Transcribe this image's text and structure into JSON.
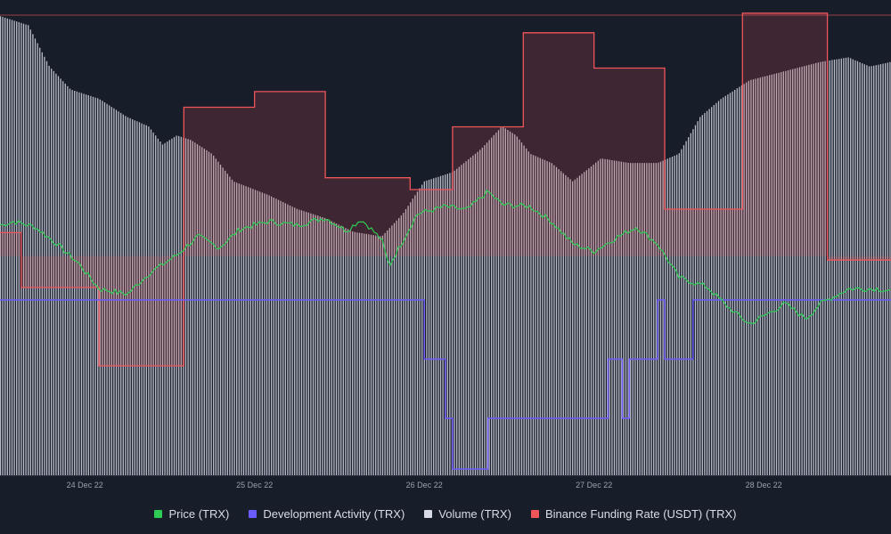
{
  "chart_data": {
    "type": "line",
    "title": "",
    "x_ticks": [
      "24 Dec 22",
      "25 Dec 22",
      "26 Dec 22",
      "27 Dec 22",
      "28 Dec 22"
    ],
    "x_range": [
      "2022-12-23T12:00",
      "2022-12-28T18:00"
    ],
    "grid": false,
    "legend_position": "bottom",
    "series": [
      {
        "name": "Price (TRX)",
        "color": "#2ecc55",
        "style": "line",
        "points": [
          [
            "2022-12-23T12:00",
            0.7
          ],
          [
            "2022-12-23T14:00",
            0.72
          ],
          [
            "2022-12-23T17:00",
            0.69
          ],
          [
            "2022-12-23T20:00",
            0.6
          ],
          [
            "2022-12-23T23:00",
            0.5
          ],
          [
            "2022-12-24T02:00",
            0.36
          ],
          [
            "2022-12-24T06:00",
            0.33
          ],
          [
            "2022-12-24T09:00",
            0.44
          ],
          [
            "2022-12-24T13:00",
            0.54
          ],
          [
            "2022-12-24T16:00",
            0.64
          ],
          [
            "2022-12-24T19:00",
            0.58
          ],
          [
            "2022-12-24T22:00",
            0.68
          ],
          [
            "2022-12-25T02:00",
            0.72
          ],
          [
            "2022-12-25T06:00",
            0.7
          ],
          [
            "2022-12-25T10:00",
            0.74
          ],
          [
            "2022-12-25T13:00",
            0.67
          ],
          [
            "2022-12-25T15:00",
            0.73
          ],
          [
            "2022-12-25T16:00",
            0.7
          ],
          [
            "2022-12-25T18:00",
            0.62
          ],
          [
            "2022-12-25T19:00",
            0.48
          ],
          [
            "2022-12-25T21:00",
            0.62
          ],
          [
            "2022-12-25T23:00",
            0.76
          ],
          [
            "2022-12-26T03:00",
            0.8
          ],
          [
            "2022-12-26T06:00",
            0.78
          ],
          [
            "2022-12-26T09:00",
            0.88
          ],
          [
            "2022-12-26T11:00",
            0.81
          ],
          [
            "2022-12-26T15:00",
            0.8
          ],
          [
            "2022-12-26T18:00",
            0.72
          ],
          [
            "2022-12-26T21:00",
            0.6
          ],
          [
            "2022-12-27T00:00",
            0.56
          ],
          [
            "2022-12-27T03:00",
            0.63
          ],
          [
            "2022-12-27T06:00",
            0.69
          ],
          [
            "2022-12-27T09:00",
            0.6
          ],
          [
            "2022-12-27T12:00",
            0.42
          ],
          [
            "2022-12-27T16:00",
            0.37
          ],
          [
            "2022-12-27T19:00",
            0.26
          ],
          [
            "2022-12-27T22:00",
            0.17
          ],
          [
            "2022-12-28T03:00",
            0.28
          ],
          [
            "2022-12-28T06:00",
            0.2
          ],
          [
            "2022-12-28T08:00",
            0.28
          ],
          [
            "2022-12-28T12:00",
            0.36
          ],
          [
            "2022-12-28T16:00",
            0.36
          ],
          [
            "2022-12-28T18:00",
            0.35
          ]
        ]
      },
      {
        "name": "Development Activity (TRX)",
        "color": "#6b5cff",
        "style": "step",
        "points": [
          [
            "2022-12-23T12:00",
            1.0
          ],
          [
            "2022-12-26T00:00",
            1.0
          ],
          [
            "2022-12-26T00:00",
            0.65
          ],
          [
            "2022-12-26T03:00",
            0.65
          ],
          [
            "2022-12-26T03:00",
            0.3
          ],
          [
            "2022-12-26T04:00",
            0.3
          ],
          [
            "2022-12-26T04:00",
            0.0
          ],
          [
            "2022-12-26T09:00",
            0.0
          ],
          [
            "2022-12-26T09:00",
            0.3
          ],
          [
            "2022-12-27T02:00",
            0.3
          ],
          [
            "2022-12-27T02:00",
            0.65
          ],
          [
            "2022-12-27T04:00",
            0.65
          ],
          [
            "2022-12-27T04:00",
            0.3
          ],
          [
            "2022-12-27T05:00",
            0.3
          ],
          [
            "2022-12-27T05:00",
            0.65
          ],
          [
            "2022-12-27T09:00",
            0.65
          ],
          [
            "2022-12-27T09:00",
            1.0
          ],
          [
            "2022-12-27T10:00",
            1.0
          ],
          [
            "2022-12-27T10:00",
            0.65
          ],
          [
            "2022-12-27T14:00",
            0.65
          ],
          [
            "2022-12-27T14:00",
            1.0
          ],
          [
            "2022-12-28T18:00",
            1.0
          ]
        ]
      },
      {
        "name": "Volume (TRX)",
        "color": "#d8dbe6",
        "style": "bars",
        "points": [
          [
            "2022-12-23T12:00",
            1.0
          ],
          [
            "2022-12-23T16:00",
            0.98
          ],
          [
            "2022-12-23T19:00",
            0.89
          ],
          [
            "2022-12-23T22:00",
            0.84
          ],
          [
            "2022-12-24T02:00",
            0.82
          ],
          [
            "2022-12-24T06:00",
            0.78
          ],
          [
            "2022-12-24T09:00",
            0.76
          ],
          [
            "2022-12-24T11:00",
            0.72
          ],
          [
            "2022-12-24T13:00",
            0.74
          ],
          [
            "2022-12-24T15:00",
            0.73
          ],
          [
            "2022-12-24T18:00",
            0.7
          ],
          [
            "2022-12-24T21:00",
            0.64
          ],
          [
            "2022-12-25T02:00",
            0.61
          ],
          [
            "2022-12-25T06:00",
            0.58
          ],
          [
            "2022-12-25T10:00",
            0.56
          ],
          [
            "2022-12-25T14:00",
            0.53
          ],
          [
            "2022-12-25T18:00",
            0.52
          ],
          [
            "2022-12-25T21:00",
            0.57
          ],
          [
            "2022-12-26T00:00",
            0.64
          ],
          [
            "2022-12-26T04:00",
            0.66
          ],
          [
            "2022-12-26T08:00",
            0.71
          ],
          [
            "2022-12-26T11:00",
            0.76
          ],
          [
            "2022-12-26T13:00",
            0.74
          ],
          [
            "2022-12-26T15:00",
            0.7
          ],
          [
            "2022-12-26T18:00",
            0.68
          ],
          [
            "2022-12-26T21:00",
            0.64
          ],
          [
            "2022-12-27T01:00",
            0.69
          ],
          [
            "2022-12-27T05:00",
            0.68
          ],
          [
            "2022-12-27T09:00",
            0.68
          ],
          [
            "2022-12-27T12:00",
            0.7
          ],
          [
            "2022-12-27T15:00",
            0.78
          ],
          [
            "2022-12-27T18:00",
            0.82
          ],
          [
            "2022-12-27T22:00",
            0.86
          ],
          [
            "2022-12-28T03:00",
            0.88
          ],
          [
            "2022-12-28T08:00",
            0.9
          ],
          [
            "2022-12-28T12:00",
            0.91
          ],
          [
            "2022-12-28T15:00",
            0.89
          ],
          [
            "2022-12-28T18:00",
            0.9
          ]
        ]
      },
      {
        "name": "Binance Funding Rate (USDT) (TRX)",
        "color": "#f0555a",
        "style": "step",
        "baseline": 0.0,
        "points": [
          [
            "2022-12-23T12:00",
            0.006
          ],
          [
            "2022-12-23T15:00",
            -0.008
          ],
          [
            "2022-12-24T02:00",
            -0.028
          ],
          [
            "2022-12-24T14:00",
            0.038
          ],
          [
            "2022-12-25T00:00",
            0.042
          ],
          [
            "2022-12-25T10:00",
            0.02
          ],
          [
            "2022-12-25T22:00",
            0.017
          ],
          [
            "2022-12-26T04:00",
            0.033
          ],
          [
            "2022-12-26T14:00",
            0.057
          ],
          [
            "2022-12-27T00:00",
            0.048
          ],
          [
            "2022-12-27T10:00",
            0.012
          ],
          [
            "2022-12-27T21:00",
            0.062
          ],
          [
            "2022-12-28T09:00",
            -0.001
          ],
          [
            "2022-12-28T20:00",
            -0.053
          ],
          [
            "2022-12-29T06:00",
            0.025
          ]
        ]
      }
    ]
  }
}
